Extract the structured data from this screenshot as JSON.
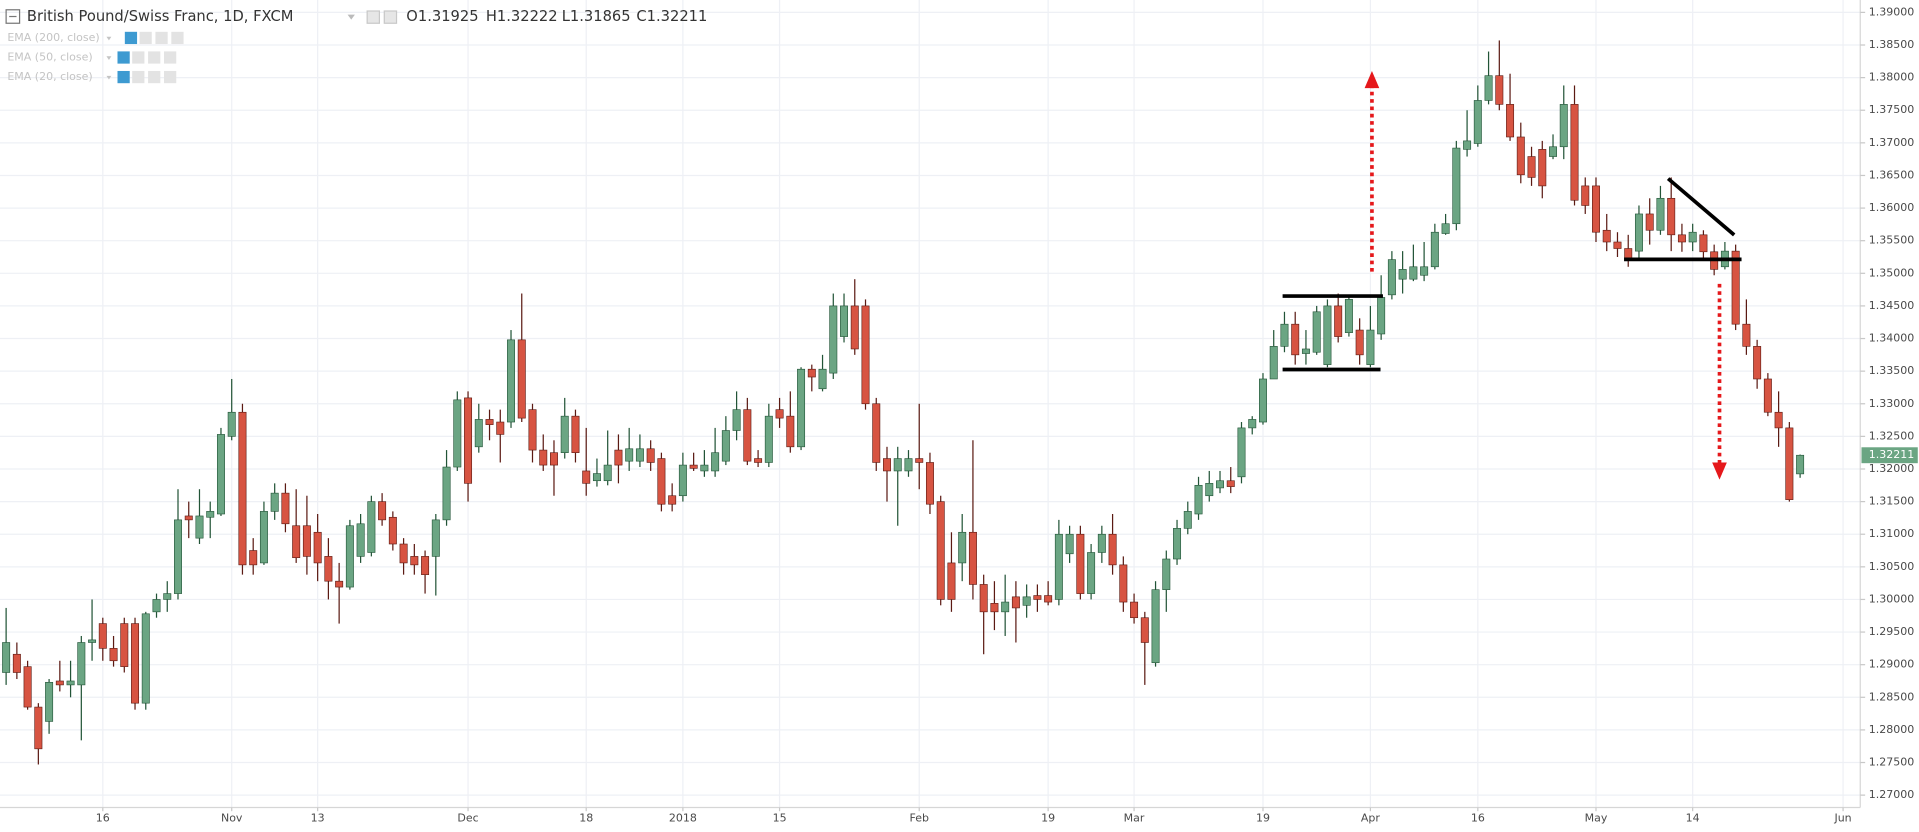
{
  "header": {
    "symbol": "British Pound/Swiss Franc, 1D, FXCM",
    "ohlc": [
      "O1.31925",
      "H1.32222",
      "L1.31865",
      "C1.32211"
    ]
  },
  "indicators": [
    "EMA (200, close)",
    "EMA (50, close)",
    "EMA (20, close)"
  ],
  "chart_data": {
    "type": "candlestick",
    "open": [
      1.2888,
      1.2916,
      1.2897,
      1.2835,
      1.2813,
      1.2875,
      1.2869,
      1.2869,
      1.2934,
      1.2963,
      1.2925,
      1.2963,
      1.2963,
      1.2841,
      1.2981,
      1.3,
      1.3009,
      1.3128,
      1.3094,
      1.3126,
      1.3131,
      1.325,
      1.3287,
      1.3075,
      1.3056,
      1.3135,
      1.3163,
      1.3113,
      1.3113,
      1.3103,
      1.3066,
      1.3028,
      1.3019,
      1.3066,
      1.3072,
      1.315,
      1.3126,
      1.3085,
      1.3066,
      1.3066,
      1.3066,
      1.3122,
      1.3203,
      1.3309,
      1.3234,
      1.3276,
      1.3272,
      1.3272,
      1.3398,
      1.3291,
      1.3229,
      1.3225,
      1.3225,
      1.3281,
      1.3197,
      1.3182,
      1.3182,
      1.3229,
      1.3212,
      1.3212,
      1.3231,
      1.3216,
      1.3159,
      1.3159,
      1.3206,
      1.3197,
      1.3197,
      1.3212,
      1.3259,
      1.3291,
      1.3216,
      1.321,
      1.3291,
      1.3281,
      1.3234,
      1.3353,
      1.3323,
      1.3347,
      1.3403,
      1.345,
      1.345,
      1.33,
      1.3216,
      1.3197,
      1.3197,
      1.3216,
      1.321,
      1.315,
      1.3056,
      1.3056,
      1.3103,
      1.3023,
      1.2994,
      1.2981,
      1.3004,
      1.2991,
      1.3006,
      1.3006,
      1.3,
      1.307,
      1.31,
      1.3009,
      1.3072,
      1.31,
      1.3053,
      1.2996,
      1.2972,
      1.2903,
      1.3015,
      1.3062,
      1.3109,
      1.3131,
      1.3159,
      1.3171,
      1.3182,
      1.3188,
      1.3263,
      1.3272,
      1.3338,
      1.3388,
      1.3422,
      1.3377,
      1.3379,
      1.336,
      1.345,
      1.3409,
      1.3413,
      1.336,
      1.3407,
      1.3467,
      1.3491,
      1.3491,
      1.3497,
      1.351,
      1.3561,
      1.3576,
      1.369,
      1.3699,
      1.3765,
      1.3803,
      1.3759,
      1.3709,
      1.3679,
      1.369,
      1.3679,
      1.3694,
      1.3759,
      1.3634,
      1.3634,
      1.3566,
      1.3548,
      1.3538,
      1.3534,
      1.3591,
      1.3566,
      1.3615,
      1.3559,
      1.3548,
      1.3559,
      1.3533,
      1.351,
      1.3534,
      1.3422,
      1.3388,
      1.3338,
      1.3287,
      1.3263,
      1.31925
    ],
    "high": [
      1.2987,
      1.2934,
      1.2906,
      1.2841,
      1.2878,
      1.2906,
      1.2906,
      1.2944,
      1.3,
      1.2972,
      1.2944,
      1.2972,
      1.2972,
      1.2981,
      1.3009,
      1.3028,
      1.3169,
      1.315,
      1.3169,
      1.315,
      1.3263,
      1.3338,
      1.33,
      1.3094,
      1.315,
      1.3178,
      1.3178,
      1.3169,
      1.3159,
      1.3131,
      1.3094,
      1.3056,
      1.3122,
      1.3131,
      1.3159,
      1.3163,
      1.3135,
      1.3094,
      1.3085,
      1.3075,
      1.3131,
      1.3229,
      1.3319,
      1.3319,
      1.33,
      1.3291,
      1.3291,
      1.3413,
      1.3469,
      1.33,
      1.3253,
      1.3244,
      1.3309,
      1.3291,
      1.3263,
      1.3216,
      1.3259,
      1.3253,
      1.3263,
      1.3253,
      1.3244,
      1.3225,
      1.3178,
      1.3225,
      1.3225,
      1.3229,
      1.3263,
      1.3281,
      1.3319,
      1.3309,
      1.3229,
      1.33,
      1.3309,
      1.3319,
      1.3356,
      1.336,
      1.3375,
      1.3469,
      1.3469,
      1.3491,
      1.346,
      1.3309,
      1.3234,
      1.3234,
      1.3229,
      1.33,
      1.3225,
      1.3159,
      1.3103,
      1.3131,
      1.3244,
      1.3038,
      1.3028,
      1.3038,
      1.3028,
      1.3023,
      1.3023,
      1.3028,
      1.3122,
      1.3113,
      1.3113,
      1.3085,
      1.3113,
      1.3131,
      1.3066,
      1.3009,
      1.2981,
      1.3028,
      1.3075,
      1.3122,
      1.315,
      1.3188,
      1.3197,
      1.3197,
      1.3203,
      1.3272,
      1.3281,
      1.3347,
      1.3413,
      1.3441,
      1.3441,
      1.3413,
      1.345,
      1.346,
      1.3469,
      1.3467,
      1.3431,
      1.345,
      1.3497,
      1.3534,
      1.3534,
      1.3544,
      1.3548,
      1.3576,
      1.3591,
      1.3703,
      1.375,
      1.3788,
      1.384,
      1.3857,
      1.3806,
      1.3731,
      1.3694,
      1.3703,
      1.3713,
      1.3788,
      1.3788,
      1.3647,
      1.3647,
      1.3591,
      1.3563,
      1.3559,
      1.3604,
      1.3615,
      1.3634,
      1.3647,
      1.3576,
      1.3576,
      1.3566,
      1.3544,
      1.3548,
      1.3544,
      1.346,
      1.3398,
      1.3347,
      1.3319,
      1.3272,
      1.32222
    ],
    "low": [
      1.2869,
      1.2878,
      1.2831,
      1.2747,
      1.2794,
      1.2859,
      1.285,
      1.2784,
      1.2906,
      1.2906,
      1.2897,
      1.2888,
      1.2831,
      1.2831,
      1.2972,
      1.2981,
      1.3,
      1.3094,
      1.3085,
      1.3094,
      1.3128,
      1.3244,
      1.3038,
      1.3038,
      1.3053,
      1.3122,
      1.3103,
      1.3056,
      1.3038,
      1.3028,
      1.3,
      1.2963,
      1.3015,
      1.3056,
      1.3066,
      1.3113,
      1.3075,
      1.3038,
      1.3038,
      1.3009,
      1.3006,
      1.3113,
      1.3197,
      1.315,
      1.3225,
      1.3244,
      1.321,
      1.3263,
      1.3272,
      1.321,
      1.3197,
      1.3159,
      1.3216,
      1.321,
      1.3159,
      1.3173,
      1.3175,
      1.3178,
      1.3197,
      1.3203,
      1.3197,
      1.3135,
      1.3135,
      1.315,
      1.3197,
      1.3188,
      1.3188,
      1.3206,
      1.3244,
      1.3206,
      1.3203,
      1.3203,
      1.3263,
      1.3225,
      1.3229,
      1.3319,
      1.3319,
      1.3338,
      1.3394,
      1.3375,
      1.3291,
      1.3197,
      1.315,
      1.3113,
      1.3188,
      1.3169,
      1.3131,
      1.2991,
      1.2981,
      1.3028,
      1.3,
      1.2916,
      1.2953,
      1.2944,
      1.2934,
      1.2972,
      1.2981,
      1.2991,
      1.2991,
      1.3056,
      1.3,
      1.3,
      1.3056,
      1.3038,
      1.2981,
      1.2963,
      1.2869,
      1.2897,
      1.2981,
      1.3053,
      1.31,
      1.3122,
      1.315,
      1.3163,
      1.3163,
      1.3178,
      1.3253,
      1.3268,
      1.3338,
      1.3379,
      1.336,
      1.336,
      1.3375,
      1.3356,
      1.3394,
      1.3403,
      1.336,
      1.3356,
      1.3398,
      1.346,
      1.3469,
      1.3488,
      1.3488,
      1.3506,
      1.3559,
      1.3566,
      1.3679,
      1.3694,
      1.3759,
      1.375,
      1.3703,
      1.3638,
      1.3634,
      1.3615,
      1.3675,
      1.3675,
      1.3604,
      1.3591,
      1.3548,
      1.3534,
      1.3525,
      1.351,
      1.3521,
      1.3544,
      1.3559,
      1.3534,
      1.3533,
      1.3534,
      1.3521,
      1.3497,
      1.3506,
      1.3413,
      1.3375,
      1.3323,
      1.3281,
      1.3234,
      1.315,
      1.31865
    ],
    "close": [
      1.2934,
      1.2888,
      1.2835,
      1.2771,
      1.2873,
      1.2869,
      1.2875,
      1.2934,
      1.2938,
      1.2925,
      1.2906,
      1.2897,
      1.2841,
      1.2978,
      1.3,
      1.3009,
      1.3122,
      1.3122,
      1.3128,
      1.3135,
      1.3253,
      1.3287,
      1.3053,
      1.3053,
      1.3135,
      1.3163,
      1.3116,
      1.3064,
      1.3066,
      1.3056,
      1.3028,
      1.3019,
      1.3113,
      1.3116,
      1.315,
      1.3122,
      1.3085,
      1.3056,
      1.3053,
      1.3038,
      1.3122,
      1.3203,
      1.3306,
      1.3178,
      1.3276,
      1.3268,
      1.3253,
      1.3398,
      1.3278,
      1.3229,
      1.3206,
      1.3206,
      1.3281,
      1.3225,
      1.3178,
      1.3193,
      1.3206,
      1.3206,
      1.3231,
      1.3231,
      1.321,
      1.3146,
      1.3146,
      1.3206,
      1.3201,
      1.3206,
      1.3225,
      1.3259,
      1.3291,
      1.3212,
      1.321,
      1.3281,
      1.3278,
      1.3234,
      1.3353,
      1.3341,
      1.3353,
      1.345,
      1.345,
      1.3384,
      1.33,
      1.321,
      1.3197,
      1.3216,
      1.3216,
      1.321,
      1.3146,
      1.3,
      1.3,
      1.3103,
      1.3023,
      1.2981,
      1.2981,
      1.2996,
      1.2987,
      1.3004,
      1.3,
      1.2996,
      1.31,
      1.31,
      1.3009,
      1.3072,
      1.31,
      1.3053,
      1.2996,
      1.2972,
      1.2934,
      1.3015,
      1.3062,
      1.3109,
      1.3135,
      1.3175,
      1.3178,
      1.3182,
      1.3173,
      1.3263,
      1.3276,
      1.3338,
      1.3388,
      1.3422,
      1.3375,
      1.3384,
      1.3441,
      1.345,
      1.3403,
      1.346,
      1.3375,
      1.3413,
      1.3463,
      1.3521,
      1.3506,
      1.351,
      1.351,
      1.3563,
      1.3576,
      1.3692,
      1.3703,
      1.3765,
      1.3803,
      1.3759,
      1.3709,
      1.3651,
      1.3647,
      1.3634,
      1.3694,
      1.3759,
      1.3612,
      1.3604,
      1.3563,
      1.3548,
      1.3538,
      1.3521,
      1.3591,
      1.3566,
      1.3615,
      1.3559,
      1.3548,
      1.3563,
      1.3533,
      1.3506,
      1.3534,
      1.3422,
      1.3388,
      1.3338,
      1.3287,
      1.3263,
      1.3153,
      1.32211
    ],
    "up_color": "#6ba583",
    "down_color": "#d75442",
    "up_wick": "#225437",
    "down_wick": "#5b1a13",
    "xlim": [
      -0.57,
      172.6
    ],
    "xticks": [
      {
        "value": 9,
        "label": "16"
      },
      {
        "value": 21,
        "label": "Nov"
      },
      {
        "value": 29,
        "label": "13"
      },
      {
        "value": 43,
        "label": "Dec"
      },
      {
        "value": 54,
        "label": "18"
      },
      {
        "value": 63,
        "label": "2018"
      },
      {
        "value": 72,
        "label": "15"
      },
      {
        "value": 85,
        "label": "Feb"
      },
      {
        "value": 97,
        "label": "19"
      },
      {
        "value": 105,
        "label": "Mar"
      },
      {
        "value": 117,
        "label": "19"
      },
      {
        "value": 127,
        "label": "Apr"
      },
      {
        "value": 137,
        "label": "16"
      },
      {
        "value": 148,
        "label": "May"
      },
      {
        "value": 157,
        "label": "14"
      },
      {
        "value": 171,
        "label": "Jun"
      }
    ],
    "ylim": [
      1.2681,
      1.3919
    ],
    "yticks": [
      {
        "value": 1.27,
        "label": "1.27000"
      },
      {
        "value": 1.275,
        "label": "1.27500"
      },
      {
        "value": 1.28,
        "label": "1.28000"
      },
      {
        "value": 1.285,
        "label": "1.28500"
      },
      {
        "value": 1.29,
        "label": "1.29000"
      },
      {
        "value": 1.295,
        "label": "1.29500"
      },
      {
        "value": 1.3,
        "label": "1.30000"
      },
      {
        "value": 1.305,
        "label": "1.30500"
      },
      {
        "value": 1.31,
        "label": "1.31000"
      },
      {
        "value": 1.315,
        "label": "1.31500"
      },
      {
        "value": 1.32,
        "label": "1.32000"
      },
      {
        "value": 1.325,
        "label": "1.32500"
      },
      {
        "value": 1.33,
        "label": "1.33000"
      },
      {
        "value": 1.335,
        "label": "1.33500"
      },
      {
        "value": 1.34,
        "label": "1.34000"
      },
      {
        "value": 1.345,
        "label": "1.34500"
      },
      {
        "value": 1.35,
        "label": "1.35000"
      },
      {
        "value": 1.355,
        "label": "1.35500"
      },
      {
        "value": 1.36,
        "label": "1.36000"
      },
      {
        "value": 1.365,
        "label": "1.36500"
      },
      {
        "value": 1.37,
        "label": "1.37000"
      },
      {
        "value": 1.375,
        "label": "1.37500"
      },
      {
        "value": 1.38,
        "label": "1.38000"
      },
      {
        "value": 1.385,
        "label": "1.38500"
      },
      {
        "value": 1.39,
        "label": "1.39000"
      }
    ],
    "grid": true,
    "last_price": {
      "value": 1.32211,
      "label": "1.32211"
    }
  }
}
